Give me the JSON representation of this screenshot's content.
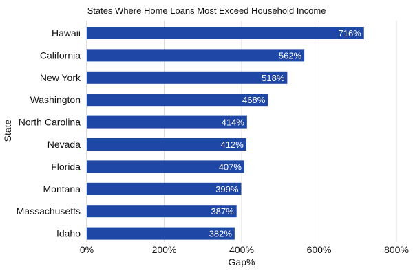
{
  "chart_data": {
    "type": "bar",
    "orientation": "horizontal",
    "title": "States Where Home Loans Most Exceed Household Income",
    "xlabel": "Gap%",
    "ylabel": "State",
    "categories": [
      "Hawaii",
      "California",
      "New York",
      "Washington",
      "North Carolina",
      "Nevada",
      "Florida",
      "Montana",
      "Massachusetts",
      "Idaho"
    ],
    "values": [
      716,
      562,
      518,
      468,
      414,
      412,
      407,
      399,
      387,
      382
    ],
    "data_labels": [
      "716%",
      "562%",
      "518%",
      "468%",
      "414%",
      "412%",
      "407%",
      "399%",
      "387%",
      "382%"
    ],
    "xlim": [
      0,
      800
    ],
    "xticks": [
      0,
      200,
      400,
      600,
      800
    ],
    "xtick_labels": [
      "0%",
      "200%",
      "400%",
      "600%",
      "800%"
    ],
    "grid": "vertical",
    "bar_color": "#1f47a6"
  }
}
